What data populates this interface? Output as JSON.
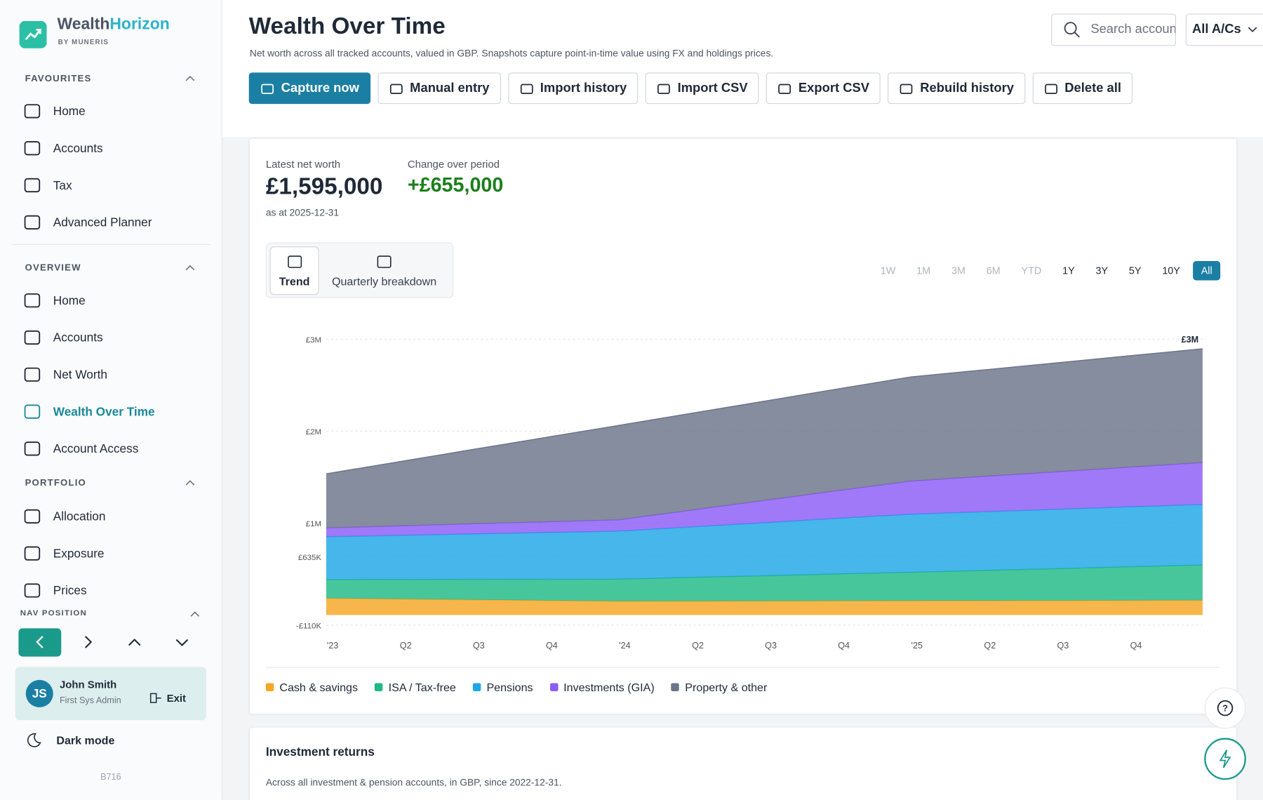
{
  "brand": {
    "name_a": "Wealth",
    "name_b": "Horizon",
    "byline": "BY MUNERIS"
  },
  "sidebar": {
    "sections": [
      {
        "title": "FAVOURITES",
        "items": [
          "Home",
          "Accounts",
          "Tax",
          "Advanced Planner"
        ]
      },
      {
        "title": "OVERVIEW",
        "items": [
          "Home",
          "Accounts",
          "Net Worth",
          "Wealth Over Time",
          "Account Access"
        ]
      },
      {
        "title": "PORTFOLIO",
        "items": [
          "Allocation",
          "Exposure",
          "Prices"
        ]
      }
    ],
    "active_item": "Wealth Over Time",
    "nav_position": "NAV POSITION",
    "user": {
      "initials": "JS",
      "name": "John Smith",
      "role": "First Sys Admin",
      "exit": "Exit"
    },
    "dark_mode": "Dark mode",
    "build": "B716"
  },
  "header": {
    "title": "Wealth Over Time",
    "subtitle": "Net worth across all tracked accounts, valued in GBP. Snapshots capture point-in-time value using FX and holdings prices.",
    "search_placeholder": "Search accounts",
    "account_select": "All A/Cs",
    "buttons": [
      "Capture now",
      "Manual entry",
      "Import history",
      "Import CSV",
      "Export CSV",
      "Rebuild history",
      "Delete all"
    ]
  },
  "summary": {
    "latest_label": "Latest net worth",
    "latest_value": "£1,595,000",
    "as_at": "as at 2025-12-31",
    "change_label": "Change over period",
    "change_value": "+£655,000"
  },
  "view_tabs": [
    "Trend",
    "Quarterly breakdown"
  ],
  "active_tab": "Trend",
  "ranges": [
    {
      "label": "1W",
      "enabled": false
    },
    {
      "label": "1M",
      "enabled": false
    },
    {
      "label": "3M",
      "enabled": false
    },
    {
      "label": "6M",
      "enabled": false
    },
    {
      "label": "YTD",
      "enabled": false
    },
    {
      "label": "1Y",
      "enabled": true
    },
    {
      "label": "3Y",
      "enabled": true
    },
    {
      "label": "5Y",
      "enabled": true
    },
    {
      "label": "10Y",
      "enabled": true
    },
    {
      "label": "All",
      "enabled": true
    }
  ],
  "active_range": "All",
  "chart_data": {
    "type": "stacked-area",
    "categories": [
      "'23",
      "Q2",
      "Q3",
      "Q4",
      "'24",
      "Q2",
      "Q3",
      "Q4",
      "'25",
      "Q2",
      "Q3",
      "Q4",
      null
    ],
    "series": [
      {
        "name": "Cash & savings",
        "color": "#f5a623",
        "values": [
          182000,
          174000,
          166000,
          158000,
          150000,
          151000,
          152000,
          154000,
          155000,
          156000,
          157000,
          159000,
          160000
        ]
      },
      {
        "name": "ISA / Tax-free",
        "color": "#20b985",
        "values": [
          204000,
          213000,
          222000,
          231000,
          240000,
          258000,
          275000,
          293000,
          310000,
          329000,
          347000,
          366000,
          384000
        ]
      },
      {
        "name": "Pensions",
        "color": "#1ea6e6",
        "values": [
          465000,
          479000,
          494000,
          508000,
          522000,
          549000,
          577000,
          604000,
          631000,
          638000,
          645000,
          651000,
          658000
        ]
      },
      {
        "name": "Investments (GIA)",
        "color": "#8b5cf6",
        "values": [
          96000,
          103000,
          110000,
          116000,
          123000,
          182000,
          242000,
          301000,
          360000,
          384000,
          408000,
          432000,
          456000
        ]
      },
      {
        "name": "Property & other",
        "color": "#6b7489",
        "values": [
          588000,
          698000,
          807000,
          917000,
          1026000,
          1053000,
          1079000,
          1106000,
          1132000,
          1158000,
          1185000,
          1211000,
          1237000
        ]
      }
    ],
    "ylim": [
      -110000,
      3000000
    ],
    "yticks": [
      {
        "value": 3000000,
        "label": "£3M"
      },
      {
        "value": 2000000,
        "label": "£2M"
      },
      {
        "value": 1000000,
        "label": "£1M"
      },
      {
        "value": 635000,
        "label": "£635K"
      },
      {
        "value": -110000,
        "label": "-£110K"
      }
    ],
    "end_label": "£3M",
    "grid": true
  },
  "returns": {
    "title": "Investment returns",
    "subtitle": "Across all investment & pension accounts, in GBP, since 2022-12-31."
  }
}
